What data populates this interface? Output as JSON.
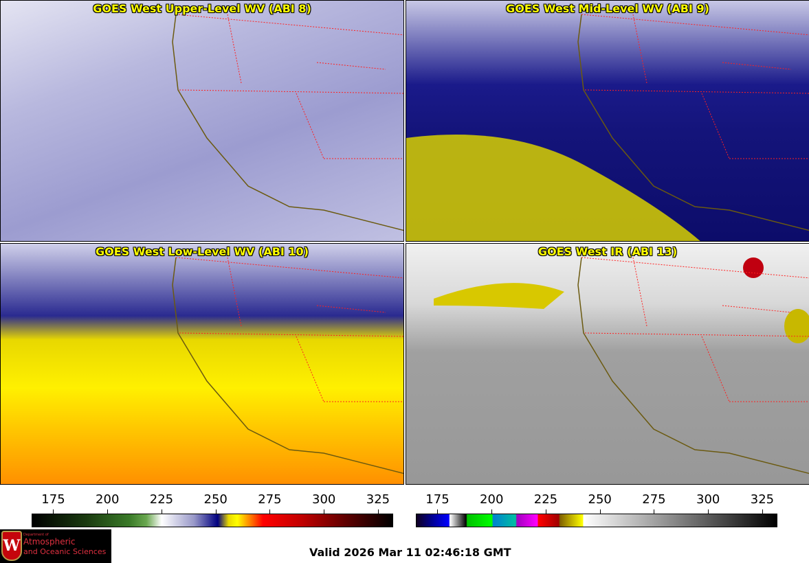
{
  "panels": [
    {
      "title": "GOES West Upper-Level WV (ABI 8)"
    },
    {
      "title": "GOES West Mid-Level WV (ABI 9)"
    },
    {
      "title": "GOES West Low-Level WV (ABI 10)"
    },
    {
      "title": "GOES West IR (ABI 13)"
    }
  ],
  "colorbars": [
    {
      "name": "wv",
      "range": [
        165,
        332
      ],
      "ticks": [
        175,
        200,
        225,
        250,
        275,
        300,
        325
      ],
      "stops": [
        [
          "#000000",
          165
        ],
        [
          "#1a3a10",
          190
        ],
        [
          "#3a7a28",
          210
        ],
        [
          "#6aa850",
          218
        ],
        [
          "#ffffff",
          225
        ],
        [
          "#9898c8",
          240
        ],
        [
          "#000080",
          251
        ],
        [
          "#e8d800",
          256
        ],
        [
          "#ffff00",
          260
        ],
        [
          "#ff8000",
          266
        ],
        [
          "#ff0000",
          272
        ],
        [
          "#c00000",
          290
        ],
        [
          "#600000",
          310
        ],
        [
          "#000000",
          332
        ]
      ]
    },
    {
      "name": "ir",
      "range": [
        165,
        332
      ],
      "ticks": [
        175,
        200,
        225,
        250,
        275,
        300,
        325
      ],
      "stops": [
        [
          "#100020",
          165
        ],
        [
          "#000090",
          172
        ],
        [
          "#0000ff",
          180
        ],
        [
          "#ffffff",
          180.5
        ],
        [
          "#000000",
          188
        ],
        [
          "#00c000",
          188.5
        ],
        [
          "#00ff00",
          200
        ],
        [
          "#0080d0",
          200.5
        ],
        [
          "#00c0a0",
          211
        ],
        [
          "#a000c0",
          211.5
        ],
        [
          "#ff00ff",
          221
        ],
        [
          "#ff0000",
          221.5
        ],
        [
          "#a00000",
          231
        ],
        [
          "#806000",
          231.5
        ],
        [
          "#ffff00",
          242
        ],
        [
          "#ffffff",
          242.5
        ],
        [
          "#000000",
          332
        ]
      ]
    }
  ],
  "logo": {
    "line1": "Department of",
    "line2": "Atmospheric",
    "line3": "and Oceanic Sciences",
    "crest": "W"
  },
  "valid": "Valid 2026 Mar 11 02:46:18 GMT"
}
